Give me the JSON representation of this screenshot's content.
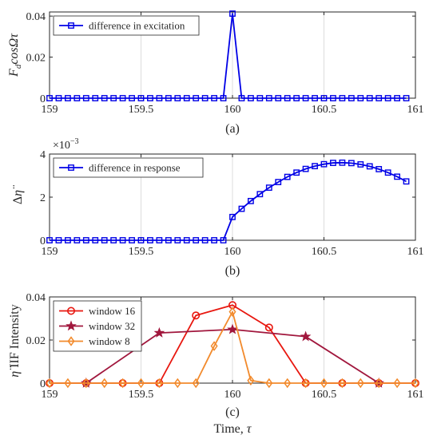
{
  "figure_caption_a": "(a)",
  "figure_caption_b": "(b)",
  "figure_caption_c": "(c)",
  "chart_data": [
    {
      "type": "line",
      "id": "a",
      "ylabel": "F_d cosΩτ",
      "xlim": [
        159,
        161
      ],
      "ylim": [
        0,
        0.042
      ],
      "xticks": [
        159,
        159.5,
        160,
        160.5,
        161
      ],
      "xtick_labels": [
        "159",
        "159.5",
        "160",
        "160.5",
        "161"
      ],
      "yticks": [
        0,
        0.02,
        0.04
      ],
      "ytick_labels": [
        "0",
        "0.02",
        "0.04"
      ],
      "grid": "x",
      "legend_position": "top-left",
      "caption": "(a)",
      "series": [
        {
          "name": "difference in excitation",
          "color": "#0000e6",
          "marker": "square",
          "x": [
            159,
            159.05,
            159.1,
            159.15,
            159.2,
            159.25,
            159.3,
            159.35,
            159.4,
            159.45,
            159.5,
            159.55,
            159.6,
            159.65,
            159.7,
            159.75,
            159.8,
            159.85,
            159.9,
            159.95,
            160,
            160.05,
            160.1,
            160.15,
            160.2,
            160.25,
            160.3,
            160.35,
            160.4,
            160.45,
            160.5,
            160.55,
            160.6,
            160.65,
            160.7,
            160.75,
            160.8,
            160.85,
            160.9,
            160.95
          ],
          "y": [
            0,
            0,
            0,
            0,
            0,
            0,
            0,
            0,
            0,
            0,
            0,
            0,
            0,
            0,
            0,
            0,
            0,
            0,
            0,
            0,
            0.0412,
            0,
            0,
            0,
            0,
            0,
            0,
            0,
            0,
            0,
            0,
            0,
            0,
            0,
            0,
            0,
            0,
            0,
            0,
            0
          ]
        }
      ]
    },
    {
      "type": "line",
      "id": "b",
      "ylabel": "Δη̈",
      "exponent_label": "×10⁻³",
      "xlim": [
        159,
        161
      ],
      "ylim": [
        0,
        4
      ],
      "xticks": [
        159,
        159.5,
        160,
        160.5,
        161
      ],
      "xtick_labels": [
        "159",
        "159.5",
        "160",
        "160.5",
        "161"
      ],
      "yticks": [
        0,
        2,
        4
      ],
      "ytick_labels": [
        "0",
        "2",
        "4"
      ],
      "grid": "x",
      "legend_position": "top-left",
      "caption": "(b)",
      "series": [
        {
          "name": "difference in response",
          "color": "#0000e6",
          "marker": "square",
          "x": [
            159,
            159.05,
            159.1,
            159.15,
            159.2,
            159.25,
            159.3,
            159.35,
            159.4,
            159.45,
            159.5,
            159.55,
            159.6,
            159.65,
            159.7,
            159.75,
            159.8,
            159.85,
            159.9,
            159.95,
            160,
            160.05,
            160.1,
            160.15,
            160.2,
            160.25,
            160.3,
            160.35,
            160.4,
            160.45,
            160.5,
            160.55,
            160.6,
            160.65,
            160.7,
            160.75,
            160.8,
            160.85,
            160.9,
            160.95
          ],
          "y": [
            0,
            0,
            0,
            0,
            0,
            0,
            0,
            0,
            0,
            0,
            0,
            0,
            0,
            0,
            0,
            0,
            0,
            0,
            0,
            0,
            1.08,
            1.46,
            1.82,
            2.14,
            2.44,
            2.7,
            2.94,
            3.14,
            3.31,
            3.44,
            3.53,
            3.59,
            3.6,
            3.58,
            3.52,
            3.43,
            3.3,
            3.14,
            2.95,
            2.73
          ]
        }
      ]
    },
    {
      "type": "line",
      "id": "c",
      "ylabel": "η̈ IIF Intensity",
      "xlabel": "Time, τ",
      "xlim": [
        159,
        161
      ],
      "ylim": [
        0,
        0.04
      ],
      "xticks": [
        159,
        159.5,
        160,
        160.5,
        161
      ],
      "xtick_labels": [
        "159",
        "159.5",
        "160",
        "160.5",
        "161"
      ],
      "yticks": [
        0,
        0.02,
        0.04
      ],
      "ytick_labels": [
        "0",
        "0.02",
        "0.04"
      ],
      "grid": "x",
      "legend_position": "top-left",
      "caption": "(c)",
      "series": [
        {
          "name": "window 16",
          "color": "#e8170f",
          "marker": "circle",
          "x": [
            159,
            159.2,
            159.4,
            159.6,
            159.8,
            160,
            160.2,
            160.4,
            160.6,
            160.8,
            161
          ],
          "y": [
            0,
            0,
            0,
            0,
            0.0314,
            0.0362,
            0.0258,
            0,
            0,
            0,
            0
          ]
        },
        {
          "name": "window 32",
          "color": "#a1173d",
          "marker": "star",
          "x": [
            159.2,
            159.6,
            160,
            160.4,
            160.8
          ],
          "y": [
            0,
            0.0233,
            0.0249,
            0.0216,
            0
          ]
        },
        {
          "name": "window 8",
          "color": "#f28a2c",
          "marker": "diamond",
          "x": [
            159,
            159.1,
            159.2,
            159.3,
            159.4,
            159.5,
            159.6,
            159.7,
            159.8,
            159.9,
            160,
            160.1,
            160.2,
            160.3,
            160.4,
            160.5,
            160.6,
            160.7,
            160.8,
            160.9,
            161
          ],
          "y": [
            0,
            0,
            0,
            0,
            0,
            0,
            0,
            0,
            0,
            0.0172,
            0.0331,
            0.0012,
            0,
            0,
            0,
            0,
            0,
            0,
            0,
            0,
            0
          ]
        }
      ]
    }
  ]
}
